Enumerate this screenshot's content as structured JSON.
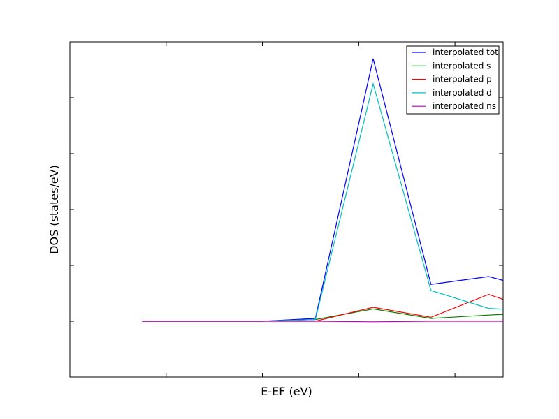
{
  "chart_data": {
    "type": "line",
    "title": "",
    "xlabel": "E-EF (eV)",
    "ylabel": "DOS (states/eV)",
    "xlim": [
      -3.0,
      1.5
    ],
    "ylim": [
      -1.0,
      5.0
    ],
    "x_ticks": [
      -2.0,
      -1.0,
      0.0,
      1.0
    ],
    "x_tick_labels": [],
    "y_ticks": [
      0.0,
      1.0,
      2.0,
      3.0,
      4.0
    ],
    "y_tick_labels": [],
    "grid": false,
    "legend_position": "top-right",
    "x": [
      -2.25,
      -1.0,
      -0.45,
      0.15,
      0.75,
      1.35,
      2.0
    ],
    "series": [
      {
        "name": "interpolated tot",
        "color": "#0000ff",
        "values": [
          0.0,
          0.0,
          0.05,
          4.7,
          0.66,
          0.8,
          0.5
        ]
      },
      {
        "name": "interpolated s",
        "color": "#008000",
        "values": [
          0.0,
          0.0,
          0.03,
          0.22,
          0.05,
          0.11,
          0.17
        ]
      },
      {
        "name": "interpolated p",
        "color": "#ff0000",
        "values": [
          0.0,
          0.0,
          0.0,
          0.25,
          0.07,
          0.48,
          0.1
        ]
      },
      {
        "name": "interpolated d",
        "color": "#00bfbf",
        "values": [
          0.0,
          0.0,
          0.03,
          4.25,
          0.55,
          0.23,
          0.17
        ]
      },
      {
        "name": "interpolated ns",
        "color": "#bf00bf",
        "values": [
          0.0,
          0.0,
          0.0,
          -0.01,
          0.0,
          0.0,
          0.0
        ]
      }
    ]
  }
}
